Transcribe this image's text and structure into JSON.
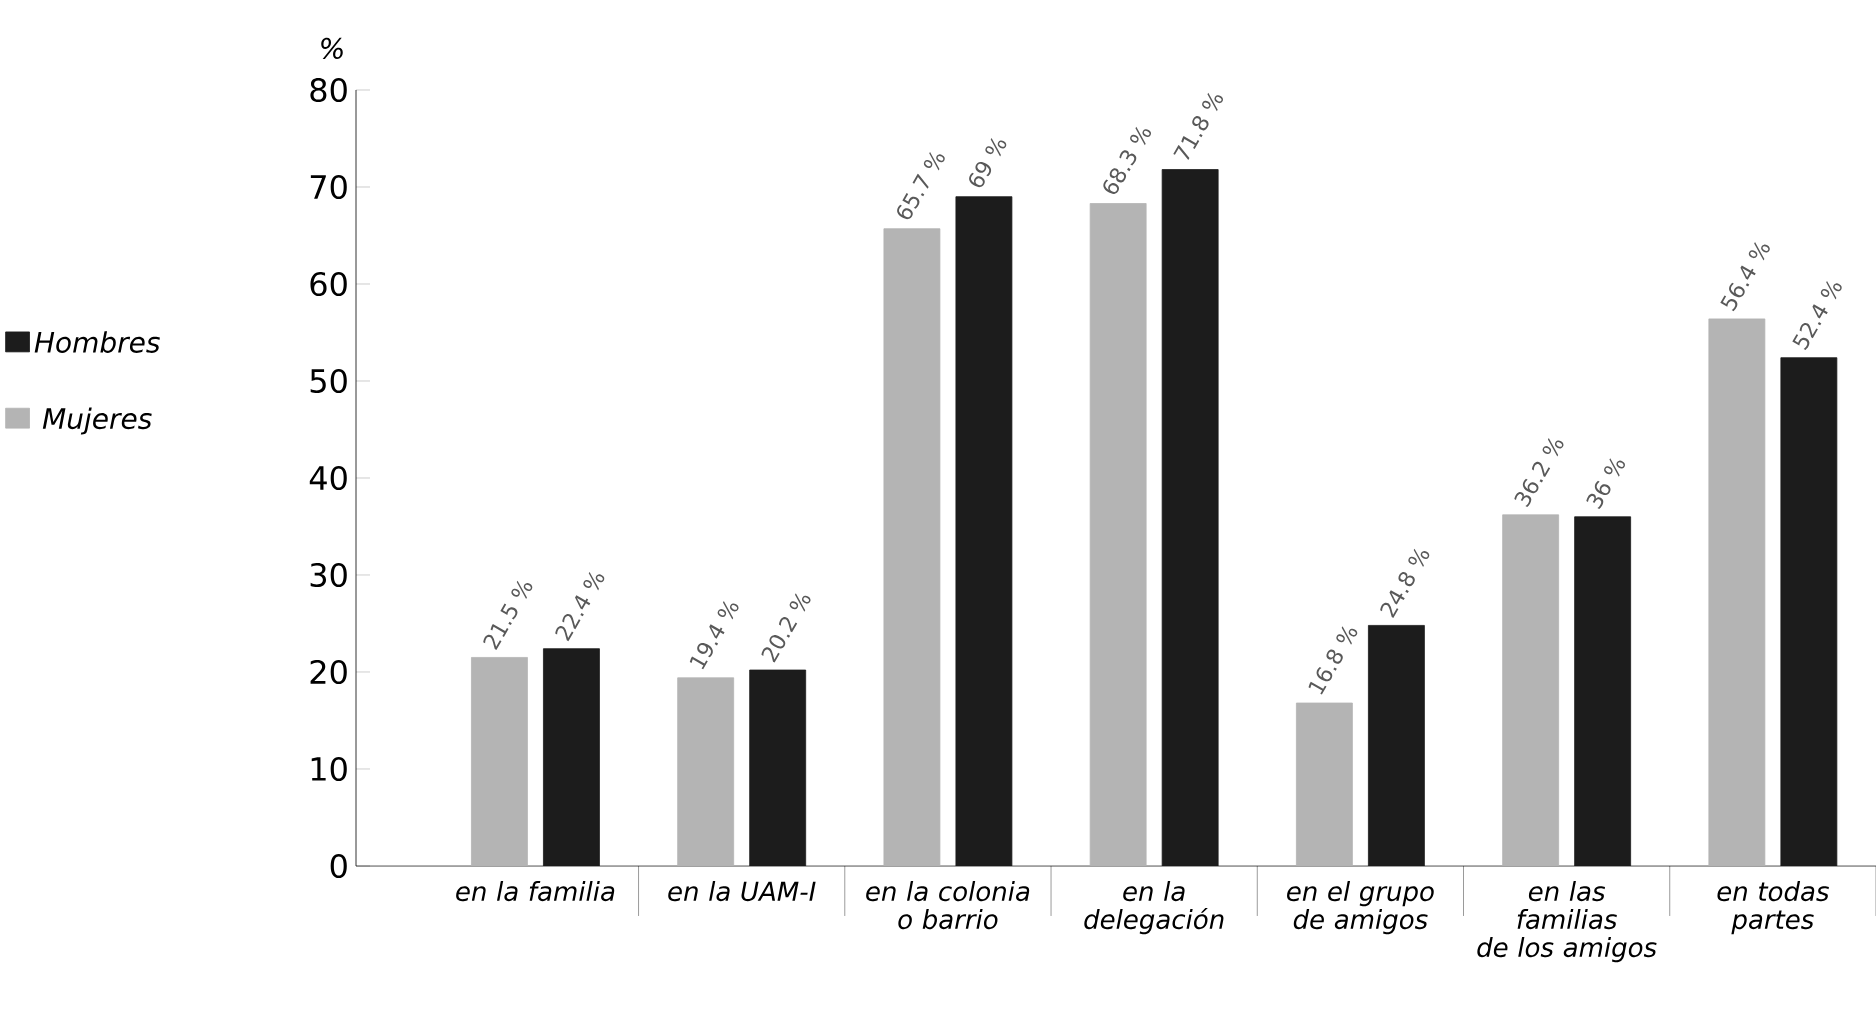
{
  "chart_data": {
    "type": "bar",
    "ylabel": "%",
    "categories": [
      "en la familia",
      "en la UAM-I",
      "en la colonia o barrio",
      "en la delegación",
      "en el grupo de amigos",
      "en las familias de los amigos",
      "en todas partes"
    ],
    "series": [
      {
        "name": "Mujeres",
        "color": "#b4b4b4",
        "values": [
          21.5,
          19.4,
          65.7,
          68.3,
          16.8,
          36.2,
          56.4
        ],
        "value_labels": [
          "21.5 %",
          "19.4 %",
          "65.7 %",
          "68.3 %",
          "16.8 %",
          "36.2 %",
          "56.4 %"
        ]
      },
      {
        "name": "Hombres",
        "color": "#1c1c1c",
        "values": [
          22.4,
          20.2,
          69,
          71.8,
          24.8,
          36,
          52.4
        ],
        "value_labels": [
          "22.4 %",
          "20.2 %",
          "69 %",
          "71.8 %",
          "24.8 %",
          "36 %",
          "52.4 %"
        ]
      }
    ],
    "ylim": [
      0,
      80
    ],
    "yticks": [
      0,
      10,
      20,
      30,
      40,
      50,
      60,
      70,
      80
    ],
    "legend": "left",
    "grid": false
  }
}
